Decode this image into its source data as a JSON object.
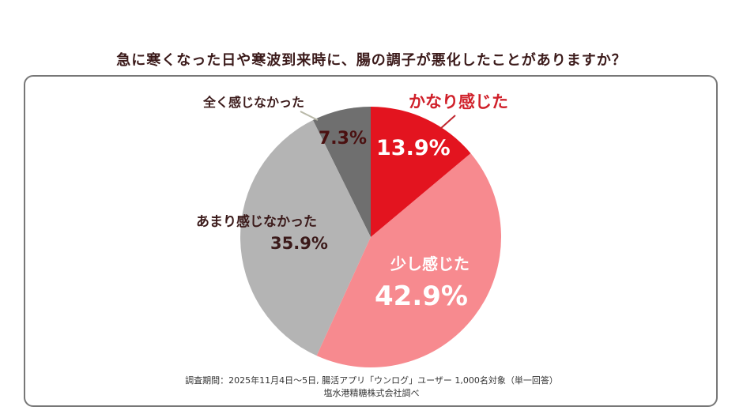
{
  "chart_data": {
    "type": "pie",
    "title": "急に寒くなった日や寒波到来時に、腸の調子が悪化したことがありますか？",
    "slices": [
      {
        "label": "かなり感じた",
        "value": 13.9,
        "value_label": "13.9%",
        "color": "#e3141f"
      },
      {
        "label": "少し感じた",
        "value": 42.9,
        "value_label": "42.9%",
        "color": "#f78a8f"
      },
      {
        "label": "あまり感じなかった",
        "value": 35.9,
        "value_label": "35.9%",
        "color": "#b4b4b4"
      },
      {
        "label": "全く感じなかった",
        "value": 7.3,
        "value_label": "7.3%",
        "color": "#6f6f6f"
      }
    ],
    "start": "top",
    "direction": "clockwise"
  },
  "note": {
    "line1": "調査期間：2025年11月4日～5日, 腸活アプリ「ウンログ」ユーザー 1,000名対象（単一回答）",
    "line2": "塩水港精糖株式会社調べ"
  }
}
